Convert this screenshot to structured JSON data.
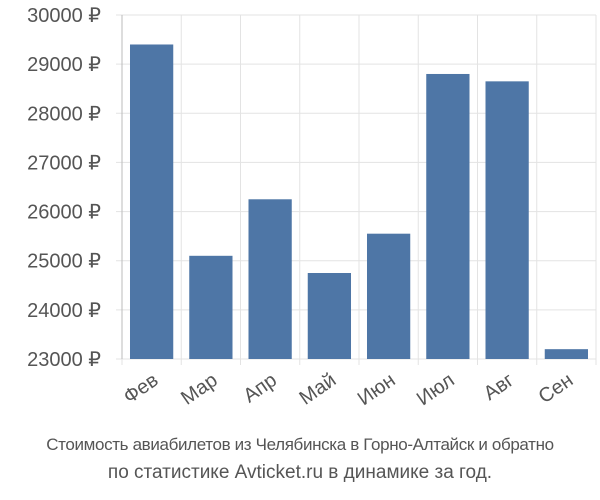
{
  "chart_data": {
    "type": "bar",
    "title": "",
    "xlabel": "",
    "ylabel": "",
    "categories": [
      "Фев",
      "Мар",
      "Апр",
      "Май",
      "Июн",
      "Июл",
      "Авг",
      "Сен"
    ],
    "values": [
      29400,
      25100,
      26250,
      24750,
      25550,
      28800,
      28650,
      23200
    ],
    "ylim": [
      23000,
      30000
    ],
    "yticks": [
      23000,
      24000,
      25000,
      26000,
      27000,
      28000,
      29000,
      30000
    ],
    "ytick_labels": [
      "23000 ₽",
      "24000 ₽",
      "25000 ₽",
      "26000 ₽",
      "27000 ₽",
      "28000 ₽",
      "29000 ₽",
      "30000 ₽"
    ],
    "bar_color": "#4e76a6",
    "grid_color": "#e3e3e3",
    "axis_color": "#bbbbbb",
    "grid": true,
    "legend": "none"
  },
  "caption": {
    "line1": "Стоимость авиабилетов из Челябинска в Горно-Алтайск и обратно",
    "line2": "по статистике Avticket.ru в динамике за год."
  }
}
